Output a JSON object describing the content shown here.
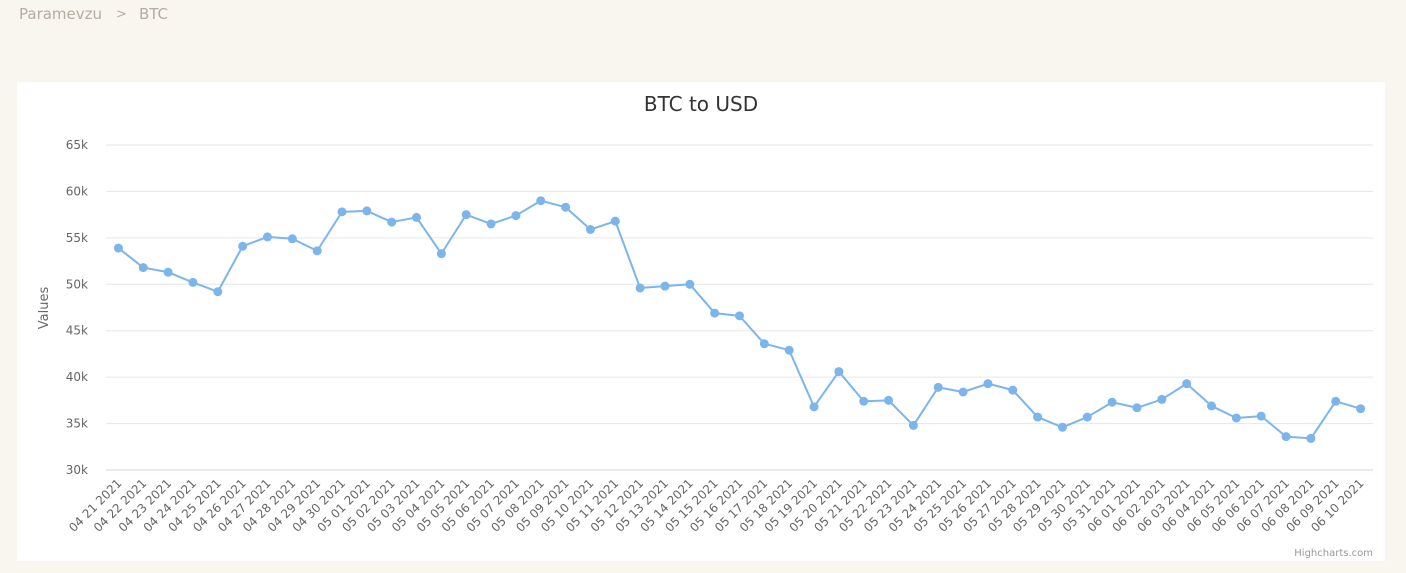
{
  "breadcrumb": {
    "root": "Paramevzu",
    "separator": ">",
    "current": "BTC"
  },
  "colors": {
    "series": "#7cb5ec",
    "grid": "#e6e6e6",
    "axis_text": "#666666",
    "title": "#333333",
    "breadcrumb": "#b5aca2"
  },
  "chart_data": {
    "type": "line",
    "title": "BTC to USD",
    "ylabel": "Values",
    "xlabel": "",
    "ylim": [
      30000,
      65000
    ],
    "yticks": [
      30000,
      35000,
      40000,
      45000,
      50000,
      55000,
      60000,
      65000
    ],
    "ytick_labels": [
      "30k",
      "35k",
      "40k",
      "45k",
      "50k",
      "55k",
      "60k",
      "65k"
    ],
    "grid": true,
    "legend": "none",
    "credits": "Highcharts.com",
    "categories": [
      "04 21 2021",
      "04 22 2021",
      "04 23 2021",
      "04 24 2021",
      "04 25 2021",
      "04 26 2021",
      "04 27 2021",
      "04 28 2021",
      "04 29 2021",
      "04 30 2021",
      "05 01 2021",
      "05 02 2021",
      "05 03 2021",
      "05 04 2021",
      "05 05 2021",
      "05 06 2021",
      "05 07 2021",
      "05 08 2021",
      "05 09 2021",
      "05 10 2021",
      "05 11 2021",
      "05 12 2021",
      "05 13 2021",
      "05 14 2021",
      "05 15 2021",
      "05 16 2021",
      "05 17 2021",
      "05 18 2021",
      "05 19 2021",
      "05 20 2021",
      "05 21 2021",
      "05 22 2021",
      "05 23 2021",
      "05 24 2021",
      "05 25 2021",
      "05 26 2021",
      "05 27 2021",
      "05 28 2021",
      "05 29 2021",
      "05 30 2021",
      "05 31 2021",
      "06 01 2021",
      "06 02 2021",
      "06 03 2021",
      "06 04 2021",
      "06 05 2021",
      "06 06 2021",
      "06 07 2021",
      "06 08 2021",
      "06 09 2021",
      "06 10 2021"
    ],
    "series": [
      {
        "values": [
          53900,
          51800,
          51300,
          50200,
          49200,
          54100,
          55100,
          54900,
          53600,
          57800,
          57900,
          56700,
          57200,
          53300,
          57500,
          56500,
          57400,
          59000,
          58300,
          55900,
          56800,
          49600,
          49800,
          50000,
          46900,
          46600,
          43600,
          42900,
          36800,
          40600,
          37400,
          37500,
          34800,
          38900,
          38400,
          39300,
          38600,
          35700,
          34600,
          35700,
          37300,
          36700,
          37600,
          39300,
          36900,
          35600,
          35800,
          33600,
          33400,
          37400,
          36600
        ]
      }
    ]
  }
}
